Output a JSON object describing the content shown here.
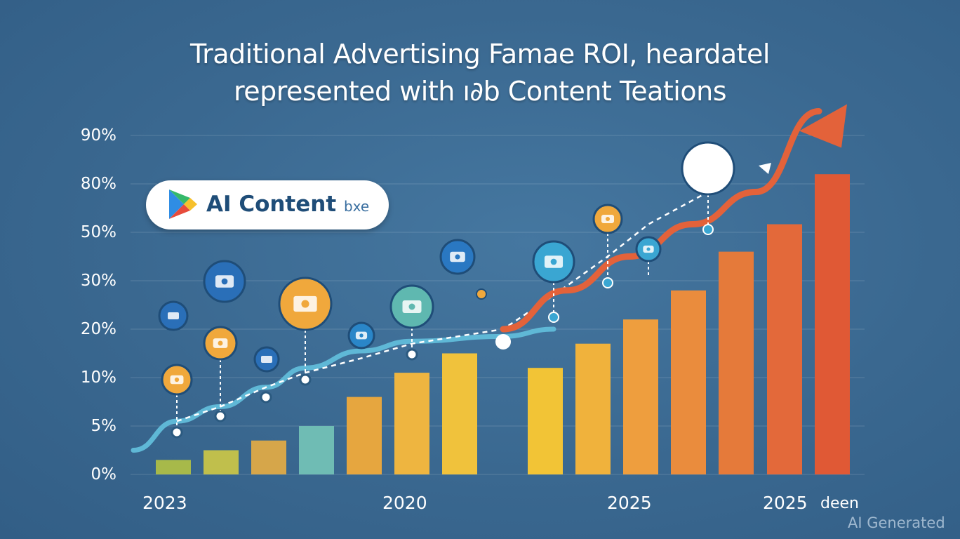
{
  "title": {
    "line1": "Traditional Advertising Famae ROI, heardatel",
    "line2": "represented with ı∂b Content Teations"
  },
  "badge": {
    "label": "AI Content",
    "suffix": "bxe",
    "icon": "play-store-icon"
  },
  "watermark": "AI Generated",
  "colors": {
    "background": "#3b6a92",
    "line": "#5fb8d6",
    "dashed": "#ffffff",
    "arrow": "#e3623a",
    "bar_gradient": [
      "#a7b94a",
      "#c0bf4c",
      "#d6a64a",
      "#6fbcb4",
      "#e6a63f",
      "#eeb540",
      "#f0c23c",
      "#f2c436",
      "#f0b23c",
      "#ee9e3e",
      "#ea8c3d",
      "#e57a3a",
      "#e3693a",
      "#e05935"
    ]
  },
  "chart_data": {
    "type": "bar",
    "title": "Traditional Advertising Famae ROI, heardatel represented with ı∂b Content Teations",
    "y_ticks": [
      "0%",
      "5%",
      "10%",
      "20%",
      "30%",
      "50%",
      "80%",
      "90%"
    ],
    "x_ticks": [
      "2023",
      "2020",
      "2025",
      "2025",
      "deen"
    ],
    "grid": true,
    "bars": [
      {
        "value": 1.5
      },
      {
        "value": 2.5
      },
      {
        "value": 3.5
      },
      {
        "value": 5
      },
      {
        "value": 8
      },
      {
        "value": 11
      },
      {
        "value": 15
      },
      {
        "value": 12
      },
      {
        "value": 17
      },
      {
        "value": 22
      },
      {
        "value": 28
      },
      {
        "value": 42
      },
      {
        "value": 55
      },
      {
        "value": 82
      }
    ],
    "series": [
      {
        "type": "line",
        "points": [
          [
            0,
            5.5
          ],
          [
            1,
            7
          ],
          [
            2,
            9
          ],
          [
            3,
            12
          ],
          [
            4,
            15.5
          ],
          [
            5,
            17.5
          ],
          [
            6,
            18.5
          ],
          [
            7,
            20
          ]
        ]
      },
      {
        "type": "dashed-line",
        "points": [
          [
            0,
            5.5
          ],
          [
            1,
            7
          ],
          [
            2,
            9
          ],
          [
            3,
            11
          ],
          [
            4,
            14
          ],
          [
            5,
            17
          ],
          [
            6,
            20
          ],
          [
            7,
            27
          ],
          [
            8,
            40
          ],
          [
            9,
            55
          ],
          [
            10,
            75
          ]
        ]
      },
      {
        "type": "trend-arrow",
        "points": [
          [
            7,
            20
          ],
          [
            8,
            28
          ],
          [
            9,
            40
          ],
          [
            10,
            55
          ],
          [
            11,
            75
          ],
          [
            12,
            95
          ]
        ]
      }
    ],
    "markers": [
      {
        "icon": "email-icon",
        "color": "#f0a83c"
      },
      {
        "icon": "app-window-icon",
        "color": "#f0a83c"
      },
      {
        "icon": "browser-icon",
        "color": "#2a6fb8"
      },
      {
        "icon": "photo-gallery-icon",
        "color": "#f0a83c"
      },
      {
        "icon": "rocket-icon",
        "color": "#2a86c8"
      },
      {
        "icon": "dashboard-icon",
        "color": "#5fb8b0"
      },
      {
        "icon": "analytics-icon",
        "color": "#2a78c2"
      },
      {
        "icon": "people-icon",
        "color": "#3aa6d2"
      },
      {
        "icon": "shield-icon",
        "color": "#f0a83c"
      },
      {
        "icon": "user-badge-icon",
        "color": "#3aa6d2"
      },
      {
        "icon": "growth-chart-icon",
        "color": "#ffffff"
      }
    ]
  }
}
